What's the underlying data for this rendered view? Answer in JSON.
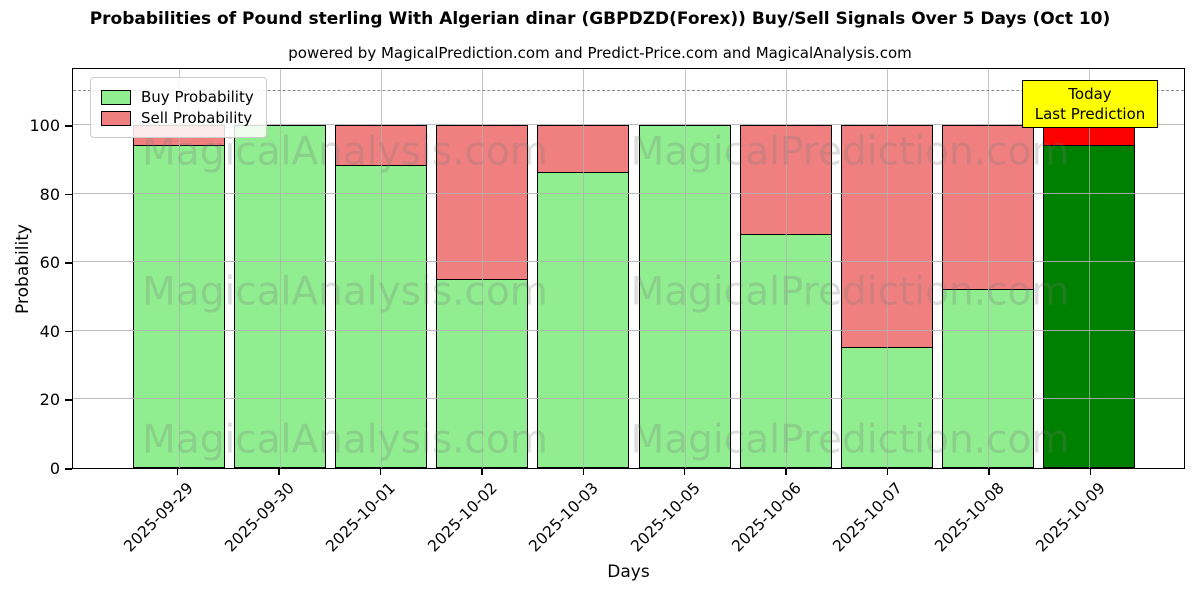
{
  "title": "Probabilities of Pound sterling With Algerian dinar (GBPDZD(Forex)) Buy/Sell Signals Over 5 Days (Oct 10)",
  "subtitle": "powered by MagicalPrediction.com and Predict-Price.com and MagicalAnalysis.com",
  "legend": {
    "items": [
      {
        "label": "Buy Probability",
        "color": "#90ee90"
      },
      {
        "label": "Sell Probability",
        "color": "#f08080"
      }
    ]
  },
  "annotation": {
    "line1": "Today",
    "line2": "Last Prediction",
    "bg_color": "#ffff00"
  },
  "watermarks": {
    "left_text": "MagicalAnalysis.com",
    "right_text": "MagicalPrediction.com"
  },
  "axes": {
    "xlabel": "Days",
    "ylabel": "Probability",
    "yticks": [
      0,
      20,
      40,
      60,
      80,
      100
    ],
    "ylim": [
      0,
      117
    ],
    "dashed_line_y": 110
  },
  "chart_data": {
    "type": "bar",
    "stacked": true,
    "title": "Probabilities of Pound sterling With Algerian dinar (GBPDZD(Forex)) Buy/Sell Signals Over 5 Days (Oct 10)",
    "xlabel": "Days",
    "ylabel": "Probability",
    "ylim": [
      0,
      117
    ],
    "grid": true,
    "legend_position": "upper left",
    "dashed_line_y": 110,
    "categories": [
      "2025-09-29",
      "2025-09-30",
      "2025-10-01",
      "2025-10-02",
      "2025-10-03",
      "2025-10-05",
      "2025-10-06",
      "2025-10-07",
      "2025-10-08",
      "2025-10-09"
    ],
    "series": [
      {
        "name": "Buy Probability",
        "color": "#90ee90",
        "values": [
          94,
          100,
          88,
          55,
          86,
          100,
          68,
          35,
          52,
          94
        ]
      },
      {
        "name": "Sell Probability",
        "color": "#f08080",
        "values": [
          6,
          0,
          12,
          45,
          14,
          0,
          32,
          65,
          48,
          6
        ]
      }
    ],
    "last_bar_highlight": {
      "buy_color": "#008000",
      "sell_color": "#ff0000"
    }
  }
}
